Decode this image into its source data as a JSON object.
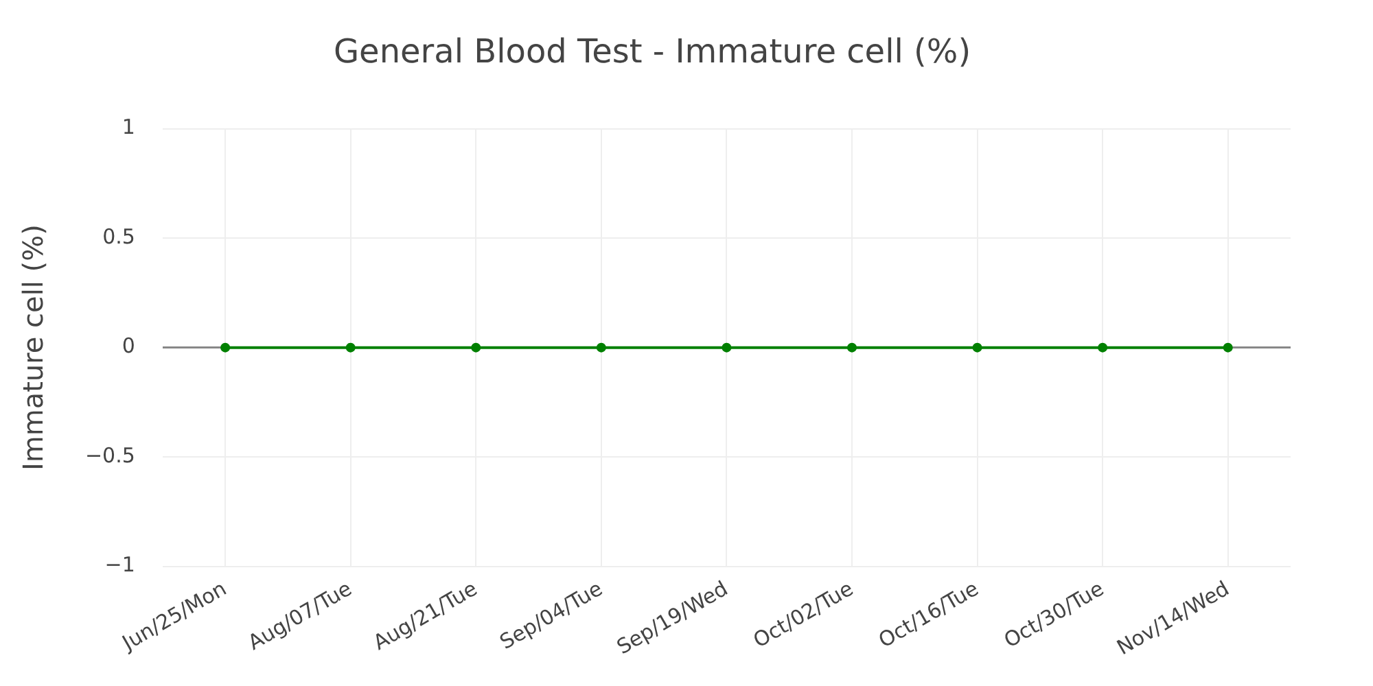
{
  "chart_data": {
    "type": "line",
    "title": "General Blood Test - Immature cell (%)",
    "ylabel": "Immature cell (%)",
    "categories": [
      "Jun/25/Mon",
      "Aug/07/Tue",
      "Aug/21/Tue",
      "Sep/04/Tue",
      "Sep/19/Wed",
      "Oct/02/Tue",
      "Oct/16/Tue",
      "Oct/30/Tue",
      "Nov/14/Wed"
    ],
    "series": [
      {
        "color": "#008000",
        "values": [
          0,
          0,
          0,
          0,
          0,
          0,
          0,
          0,
          0
        ]
      }
    ],
    "ylim": [
      -1,
      1
    ],
    "yticks": [
      {
        "value": -1,
        "label": "−1"
      },
      {
        "value": -0.5,
        "label": "−0.5"
      },
      0,
      0.5,
      1
    ],
    "grid": true,
    "legend": false,
    "marker": "circle",
    "line_style": "solid"
  }
}
